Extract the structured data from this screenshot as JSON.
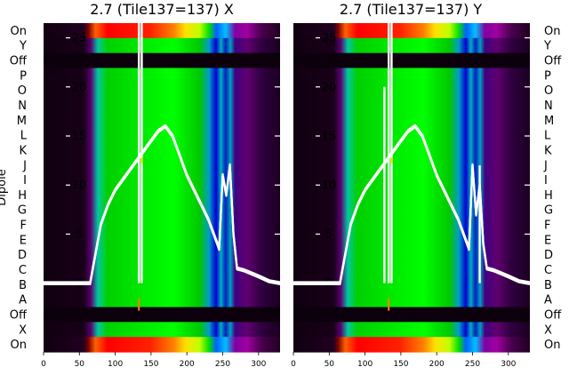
{
  "chart_data": [
    {
      "type": "heatmap",
      "title": "2.7 (Tile137=137) X",
      "ylabel": "Dipole",
      "xlim": [
        0,
        330
      ],
      "x_ticks": [
        0,
        50,
        100,
        150,
        200,
        250,
        300
      ],
      "row_labels": [
        "On",
        "Y",
        "Off",
        "P",
        "O",
        "N",
        "M",
        "L",
        "K",
        "J",
        "I",
        "H",
        "G",
        "F",
        "E",
        "D",
        "C",
        "B",
        "A",
        "Off",
        "X",
        "On"
      ],
      "overlay_ticks": [
        25,
        20,
        15,
        10,
        5,
        0
      ],
      "overlay_ylim": [
        -7,
        26.5
      ],
      "overlay_series": {
        "x": [
          0,
          65,
          70,
          80,
          90,
          100,
          110,
          120,
          130,
          140,
          150,
          160,
          170,
          180,
          190,
          200,
          210,
          220,
          230,
          240,
          245,
          250,
          255,
          260,
          265,
          270,
          280,
          290,
          300,
          315,
          330
        ],
        "y": [
          0,
          0,
          2,
          6,
          8,
          9.5,
          10.5,
          11.5,
          12.5,
          13.5,
          14.5,
          15.5,
          16,
          15,
          13,
          11,
          9.5,
          8,
          6.5,
          4.5,
          3.5,
          11,
          9,
          12,
          5,
          1.5,
          1.3,
          1.0,
          0.7,
          0.2,
          0
        ]
      },
      "spikes": [
        {
          "x": 133,
          "y": 26.5
        },
        {
          "x": 137,
          "y": 26.5
        }
      ]
    },
    {
      "type": "heatmap",
      "title": "2.7 (Tile137=137) Y",
      "xlim": [
        0,
        330
      ],
      "x_ticks": [
        0,
        50,
        100,
        150,
        200,
        250,
        300
      ],
      "row_labels": [
        "On",
        "Y",
        "Off",
        "P",
        "O",
        "N",
        "M",
        "L",
        "K",
        "J",
        "I",
        "H",
        "G",
        "F",
        "E",
        "D",
        "C",
        "B",
        "A",
        "Off",
        "X",
        "On"
      ],
      "overlay_ticks": [
        25,
        20,
        15,
        10,
        5,
        0
      ],
      "overlay_ylim": [
        -7,
        26.5
      ],
      "overlay_series": {
        "x": [
          0,
          65,
          70,
          80,
          90,
          100,
          110,
          120,
          130,
          140,
          150,
          160,
          170,
          180,
          190,
          200,
          210,
          220,
          230,
          240,
          245,
          250,
          255,
          260,
          265,
          270,
          280,
          290,
          300,
          315,
          330
        ],
        "y": [
          0,
          0,
          2,
          6,
          8,
          9.5,
          10.5,
          11.5,
          12.5,
          13.5,
          14.5,
          15.5,
          16,
          15,
          13,
          11,
          9.5,
          8,
          6.5,
          4.5,
          3.5,
          12,
          7,
          10,
          4,
          1.5,
          1.3,
          1.0,
          0.7,
          0.2,
          0
        ]
      },
      "spikes": [
        {
          "x": 127,
          "y": 20
        },
        {
          "x": 133,
          "y": 26.5
        },
        {
          "x": 137,
          "y": 26.5
        },
        {
          "x": 260,
          "y": 12
        }
      ]
    }
  ]
}
